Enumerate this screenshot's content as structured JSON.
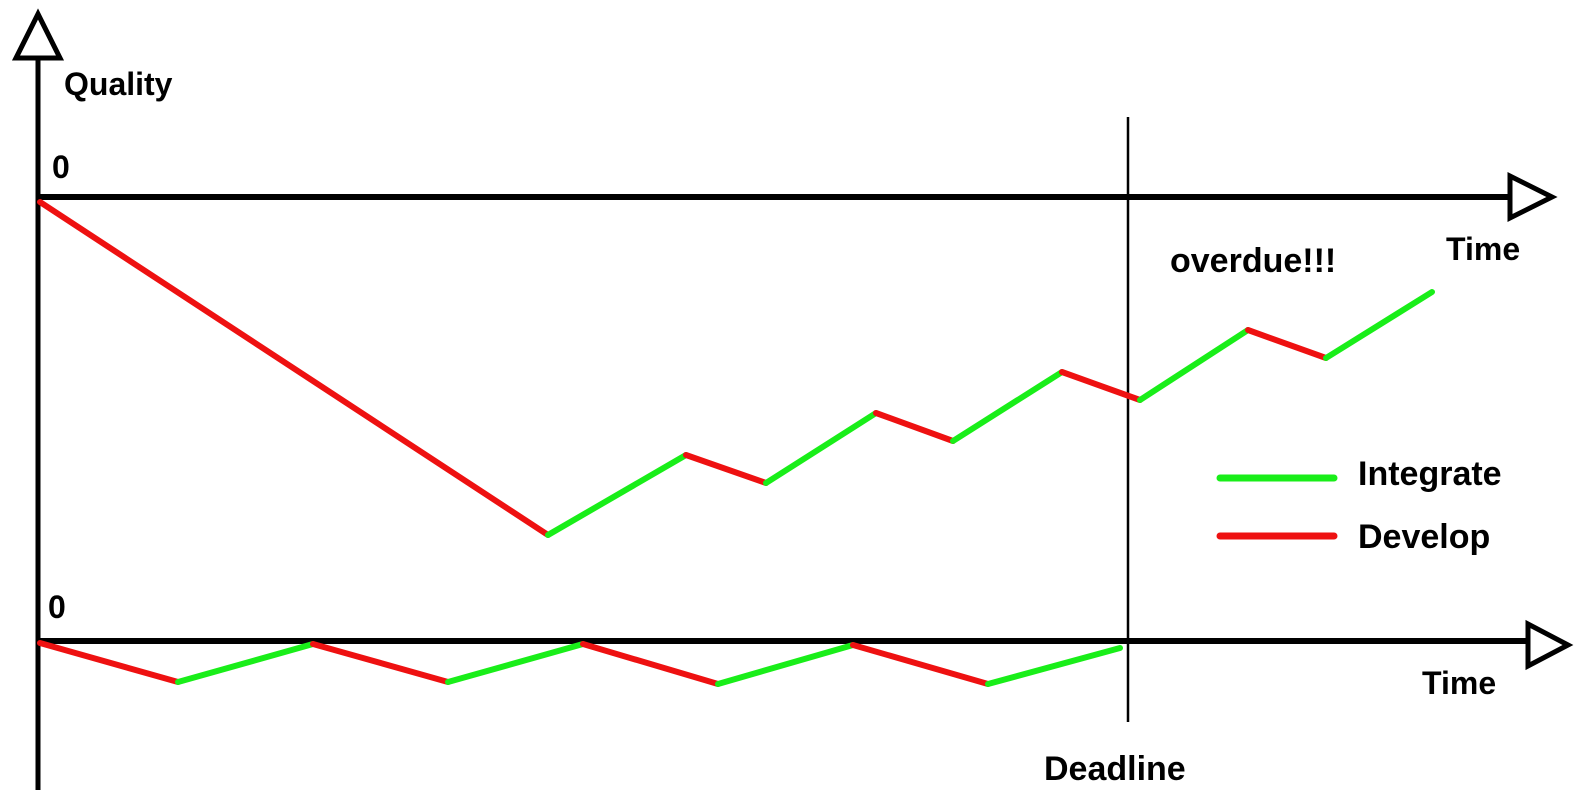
{
  "labels": {
    "y_axis": "Quality",
    "upper_zero": "0",
    "lower_zero": "0",
    "upper_x_axis": "Time",
    "lower_x_axis": "Time",
    "overdue": "overdue!!!",
    "deadline": "Deadline"
  },
  "legend": {
    "items": [
      {
        "label": "Integrate",
        "color": "#19ee19"
      },
      {
        "label": "Develop",
        "color": "#ee1111"
      }
    ]
  },
  "colors": {
    "integrate": "#19ee19",
    "develop": "#ee1111",
    "axis": "#000000"
  },
  "icons": {
    "axis_arrowhead": "open-triangle-arrowhead"
  }
}
